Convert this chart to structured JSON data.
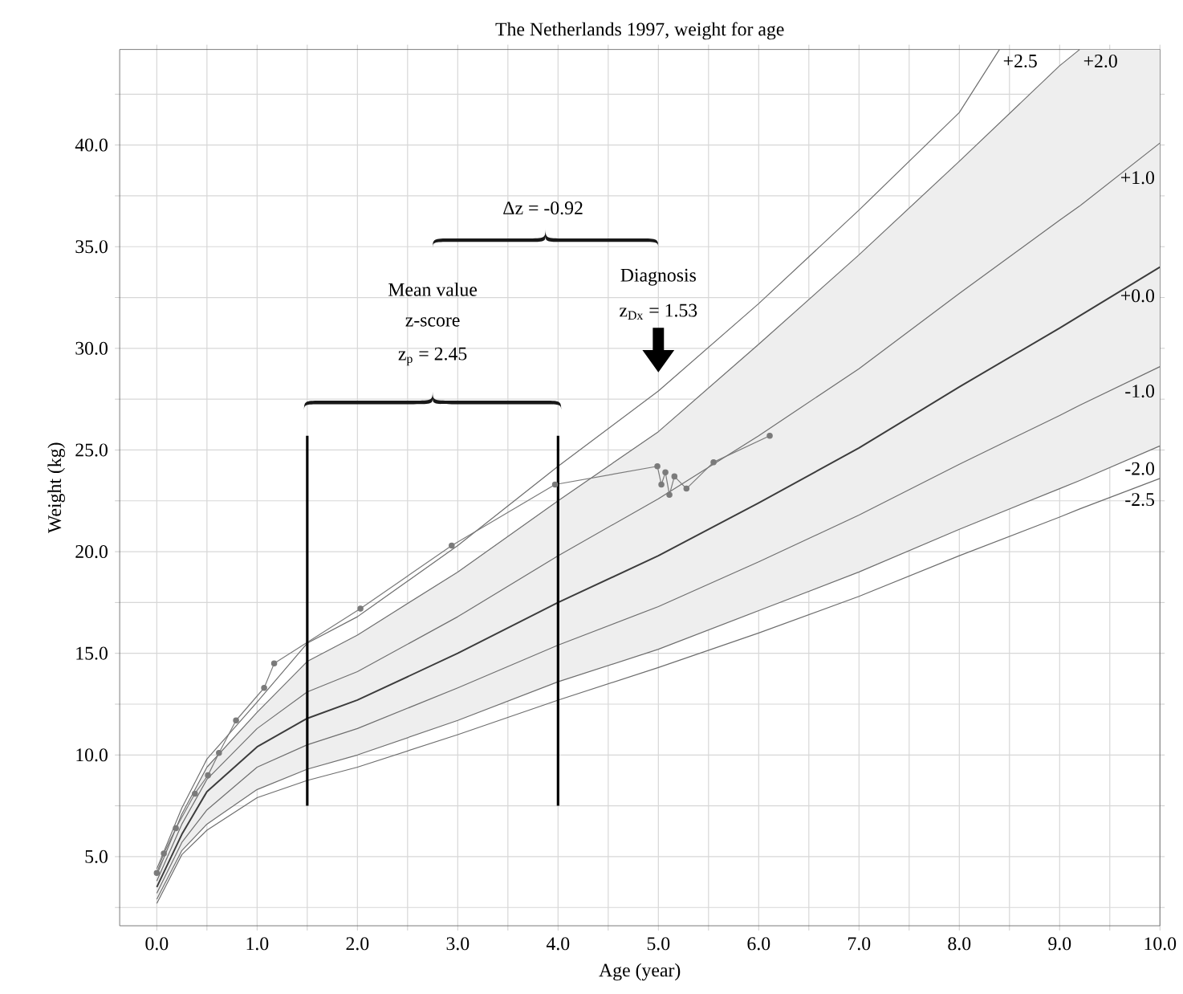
{
  "chart_data": {
    "type": "line",
    "title": "The Netherlands 1997, weight for age",
    "xlabel": "Age (year)",
    "ylabel": "Weight (kg)",
    "xlim": [
      -0.37,
      10.0
    ],
    "ylim": [
      1.6,
      44.7
    ],
    "grid": true,
    "marker": "none",
    "xticks": [
      {
        "value": 0,
        "label": "0.0"
      },
      {
        "value": 0.5,
        "label": null
      },
      {
        "value": 1,
        "label": "1.0"
      },
      {
        "value": 1.5,
        "label": null
      },
      {
        "value": 2,
        "label": "2.0"
      },
      {
        "value": 2.5,
        "label": null
      },
      {
        "value": 3,
        "label": "3.0"
      },
      {
        "value": 3.5,
        "label": null
      },
      {
        "value": 4,
        "label": "4.0"
      },
      {
        "value": 4.5,
        "label": null
      },
      {
        "value": 5,
        "label": "5.0"
      },
      {
        "value": 5.5,
        "label": null
      },
      {
        "value": 6,
        "label": "6.0"
      },
      {
        "value": 6.5,
        "label": null
      },
      {
        "value": 7,
        "label": "7.0"
      },
      {
        "value": 7.5,
        "label": null
      },
      {
        "value": 8,
        "label": "8.0"
      },
      {
        "value": 8.5,
        "label": null
      },
      {
        "value": 9,
        "label": "9.0"
      },
      {
        "value": 9.5,
        "label": null
      },
      {
        "value": 10,
        "label": "10.0"
      }
    ],
    "yticks": [
      {
        "value": 2.5,
        "label": null
      },
      {
        "value": 5,
        "label": "5.0"
      },
      {
        "value": 7.5,
        "label": null
      },
      {
        "value": 10,
        "label": "10.0"
      },
      {
        "value": 12.5,
        "label": null
      },
      {
        "value": 15,
        "label": "15.0"
      },
      {
        "value": 17.5,
        "label": null
      },
      {
        "value": 20,
        "label": "20.0"
      },
      {
        "value": 22.5,
        "label": null
      },
      {
        "value": 25,
        "label": "25.0"
      },
      {
        "value": 27.5,
        "label": null
      },
      {
        "value": 30,
        "label": "30.0"
      },
      {
        "value": 32.5,
        "label": null
      },
      {
        "value": 35,
        "label": "35.0"
      },
      {
        "value": 37.5,
        "label": null
      },
      {
        "value": 40,
        "label": "40.0"
      },
      {
        "value": 42.5,
        "label": null
      }
    ],
    "x": [
      0,
      0.25,
      0.5,
      1,
      1.5,
      2,
      3,
      4,
      5,
      6,
      7,
      8,
      9,
      9.2,
      10
    ],
    "series": [
      {
        "name": "+0.0",
        "color": "#3c3c3c",
        "values": [
          3.5,
          6.1,
          8.2,
          10.4,
          11.8,
          12.7,
          15.0,
          17.5,
          19.8,
          22.4,
          25.1,
          28.1,
          31.0,
          31.6,
          34.0
        ],
        "lower": [
          2.9,
          5.3,
          6.6,
          8.3,
          9.3,
          10.0,
          11.7,
          13.6,
          15.2,
          17.1,
          19.0,
          21.1,
          23.1,
          23.5,
          25.2
        ],
        "upper": [
          4.1,
          7.1,
          9.4,
          12.1,
          14.6,
          15.9,
          19.0,
          22.5,
          25.9,
          30.2,
          34.6,
          39.2,
          43.9,
          44.7,
          44.7
        ]
      },
      {
        "name": "+2.5",
        "color": "#6e6e6e",
        "x": [
          0,
          0.25,
          0.5,
          1,
          1.5,
          2,
          3,
          4,
          5,
          6,
          7,
          8,
          8.4
        ],
        "values": [
          4.4,
          7.4,
          9.8,
          12.6,
          15.5,
          16.8,
          20.3,
          24.2,
          27.9,
          32.2,
          36.8,
          41.6,
          44.7
        ]
      },
      {
        "name": "+2.0",
        "color": "#6e6e6e",
        "x": [
          0,
          0.25,
          0.5,
          1,
          1.5,
          2,
          3,
          4,
          5,
          6,
          7,
          8,
          9,
          9.2
        ],
        "values": [
          4.1,
          7.1,
          9.4,
          12.1,
          14.6,
          15.9,
          19.0,
          22.5,
          25.9,
          30.2,
          34.6,
          39.2,
          43.9,
          44.7
        ]
      },
      {
        "name": "+1.0",
        "color": "#6e6e6e",
        "values": [
          3.8,
          6.6,
          8.8,
          11.3,
          13.1,
          14.1,
          16.8,
          19.8,
          22.6,
          25.7,
          29.0,
          32.7,
          36.3,
          37.0,
          40.1
        ]
      },
      {
        "name": "-1.0",
        "color": "#6e6e6e",
        "values": [
          3.2,
          5.7,
          7.3,
          9.4,
          10.5,
          11.3,
          13.3,
          15.4,
          17.3,
          19.5,
          21.8,
          24.3,
          26.7,
          27.2,
          29.1
        ]
      },
      {
        "name": "-2.0",
        "color": "#6e6e6e",
        "values": [
          2.9,
          5.3,
          6.6,
          8.3,
          9.3,
          10.0,
          11.7,
          13.6,
          15.2,
          17.1,
          19.0,
          21.1,
          23.1,
          23.5,
          25.2
        ]
      },
      {
        "name": "-2.5",
        "color": "#6e6e6e",
        "values": [
          2.7,
          5.1,
          6.3,
          7.9,
          8.75,
          9.4,
          11.0,
          12.7,
          14.3,
          16.0,
          17.8,
          19.8,
          21.7,
          22.1,
          23.6
        ]
      },
      {
        "color": "#7a7a7a",
        "marker": "circle",
        "x": [
          0,
          0.07,
          0.19,
          0.38,
          0.51,
          0.62,
          0.79,
          1.07,
          1.17,
          2.03,
          2.94,
          3.97,
          4.99,
          5.03,
          5.07,
          5.11,
          5.16,
          5.28,
          5.55,
          6.11
        ],
        "values": [
          4.2,
          5.15,
          6.4,
          8.1,
          9.0,
          10.1,
          11.7,
          13.3,
          14.5,
          17.2,
          20.3,
          23.3,
          24.2,
          23.3,
          23.9,
          22.8,
          23.7,
          23.1,
          24.4,
          25.7
        ]
      },
      {
        "color": "#000000",
        "x": [
          1.5,
          1.5
        ],
        "values": [
          7.5,
          25.7
        ]
      },
      {
        "color": "#000000",
        "x": [
          4.0,
          4.0
        ],
        "values": [
          7.5,
          25.7
        ]
      }
    ],
    "annotations": [
      "Mean value",
      "z-score",
      "z$_{p}$ = 2.45",
      "Diagnosis",
      "z$_{Dx}$ = 1.53",
      "Δz = -0.92"
    ]
  }
}
